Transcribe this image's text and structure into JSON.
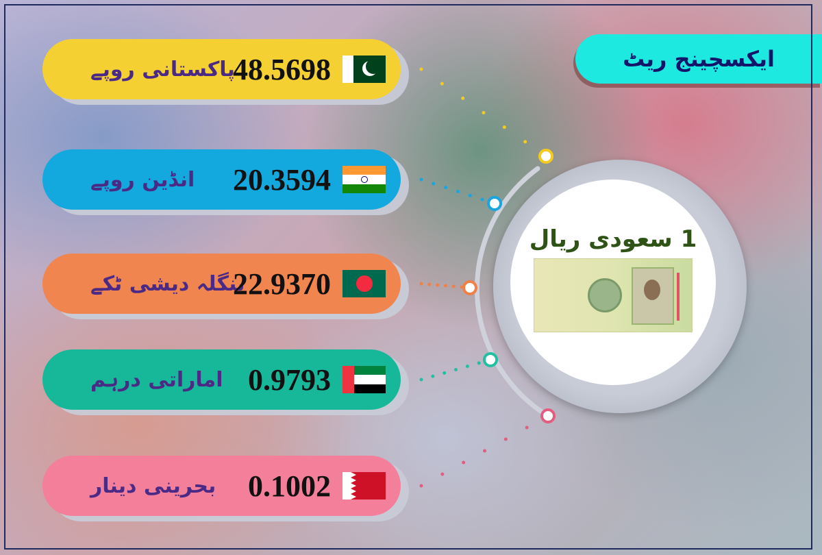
{
  "title": "ایکسچینج ریٹ",
  "base": {
    "label": "1 سعودی ریال",
    "image": "saudi-1-riyal-banknote"
  },
  "rates": [
    {
      "name": "پاکستانی روپے",
      "value": "48.5698",
      "flag": "pakistan-flag",
      "color": "#f5d033",
      "dot": "#f3cb22"
    },
    {
      "name": "انڈین روپے",
      "value": "20.3594",
      "flag": "india-flag",
      "color": "#13a8de",
      "dot": "#19a6e0"
    },
    {
      "name": "بنگلہ دیشی ٹکے",
      "value": "22.9370",
      "flag": "bangladesh-flag",
      "color": "#f0854f",
      "dot": "#ef8048"
    },
    {
      "name": "اماراتی درہم",
      "value": "0.9793",
      "flag": "uae-flag",
      "color": "#17b89a",
      "dot": "#22bfa3"
    },
    {
      "name": "بحرینی دینار",
      "value": "0.1002",
      "flag": "bahrain-flag",
      "color": "#f47f9a",
      "dot": "#e35d80"
    }
  ]
}
